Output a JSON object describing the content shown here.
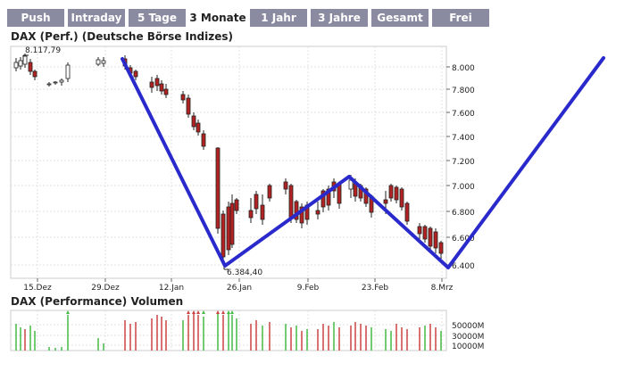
{
  "tabs": [
    {
      "label": "Push",
      "active": false
    },
    {
      "label": "Intraday",
      "active": false
    },
    {
      "label": "5 Tage",
      "active": false
    },
    {
      "label": "3 Monate",
      "active": true
    },
    {
      "label": "1 Jahr",
      "active": false
    },
    {
      "label": "3 Jahre",
      "active": false
    },
    {
      "label": "Gesamt",
      "active": false
    },
    {
      "label": "Frei",
      "active": false
    }
  ],
  "price_chart": {
    "title": "DAX (Perf.) (Deutsche Börse Indizes)",
    "high_label": "8.117,79",
    "low_label": "6.384,40",
    "y_ticks": [
      "8.000",
      "7.800",
      "7.600",
      "7.400",
      "7.200",
      "7.000",
      "6.800",
      "6.600",
      "6.400"
    ],
    "x_ticks": [
      "15.Dez",
      "29.Dez",
      "12.Jan",
      "26.Jan",
      "9.Feb",
      "23.Feb",
      "8.Mrz"
    ]
  },
  "volume_chart": {
    "title": "DAX (Performance) Volumen",
    "y_ticks": [
      "50000M",
      "30000M",
      "10000M"
    ]
  },
  "colors": {
    "tab_bg": "#8a8aa0",
    "candle_up": "#ffffff",
    "candle_down": "#b22222",
    "volume_up": "#44bb44",
    "volume_down": "#cc4444",
    "drawn_line": "#2a2acc"
  }
}
